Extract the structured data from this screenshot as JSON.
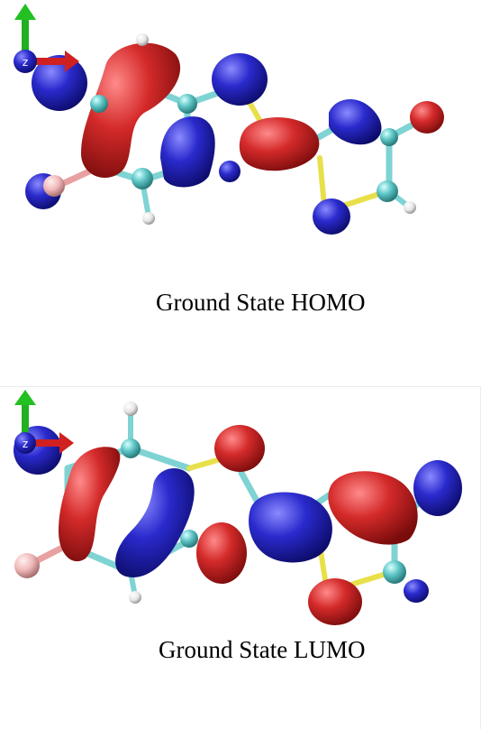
{
  "figure": {
    "panels": [
      {
        "id": "homo",
        "caption": "Ground State HOMO",
        "axis_label": "z"
      },
      {
        "id": "lumo",
        "caption": "Ground State LUMO",
        "axis_label": "z"
      }
    ],
    "colors": {
      "positive_lobe": "#d42a2a",
      "negative_lobe": "#2a2acd",
      "carbon_atom": "#5cc4c4",
      "hydrogen_atom": "#f2f2f2",
      "fluorine_atom": "#f0b8b8",
      "bond_carbon": "#7fd3d3",
      "bond_sulfur": "#e8e04a",
      "axis_x": "#d02020",
      "axis_y": "#20b020",
      "axis_z": "#2020c0"
    }
  }
}
